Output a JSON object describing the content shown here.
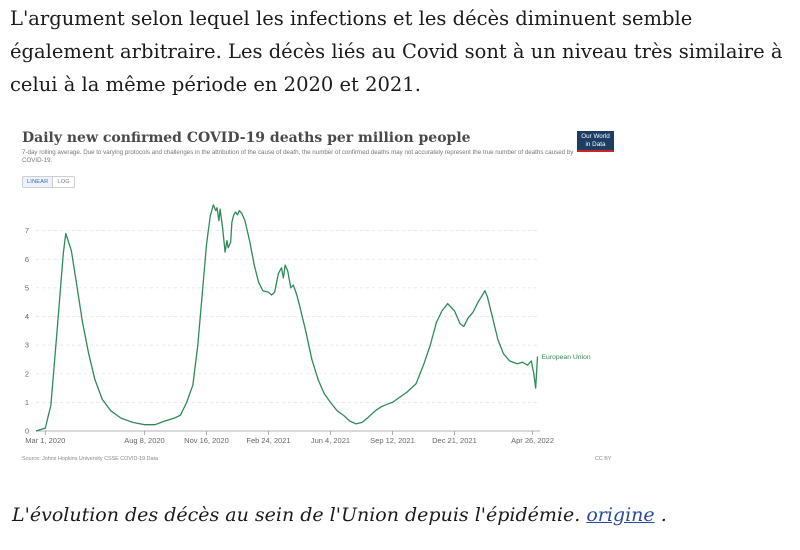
{
  "article": {
    "intro_text": "L'argument selon lequel les infections et les décès diminuent semble également arbitraire. Les décès liés au Covid sont à un niveau très similaire à celui à la même période en 2020 et 2021.",
    "caption_text": "L'évolution des décès au sein de l'Union depuis l'épidémie.",
    "caption_link": "origine",
    "caption_end": "."
  },
  "chart_card": {
    "logo_line1": "Our World",
    "logo_line2": "in Data",
    "linear_label": "LINEAR",
    "log_label": "LOG",
    "source": "Source: Johns Hopkins University CSSE COVID-19 Data",
    "license": "CC BY",
    "colors": {
      "series": "#2e8b57",
      "grid": "#e2e2e2",
      "axis_text": "#666666"
    }
  },
  "chart_data": {
    "type": "line",
    "title": "Daily new confirmed COVID-19 deaths per million people",
    "subtitle": "7-day rolling average. Due to varying protocols and challenges in the attribution of the cause of death, the number of confirmed deaths may not accurately represent the true number of deaths caused by COVID-19.",
    "xlabel": "",
    "ylabel": "",
    "ylim": [
      0,
      8
    ],
    "xlim": [
      "2020-02-15",
      "2022-05-08"
    ],
    "yticks": [
      0,
      1,
      2,
      3,
      4,
      5,
      6,
      7
    ],
    "xticks": [
      {
        "date": "2020-03-01",
        "label": "Mar 1, 2020"
      },
      {
        "date": "2020-08-08",
        "label": "Aug 8, 2020"
      },
      {
        "date": "2020-11-16",
        "label": "Nov 16, 2020"
      },
      {
        "date": "2021-02-24",
        "label": "Feb 24, 2021"
      },
      {
        "date": "2021-06-04",
        "label": "Jun 4, 2021"
      },
      {
        "date": "2021-09-12",
        "label": "Sep 12, 2021"
      },
      {
        "date": "2021-12-21",
        "label": "Dec 21, 2021"
      },
      {
        "date": "2022-04-26",
        "label": "Apr 26, 2022"
      }
    ],
    "grid": true,
    "legend": "end-label",
    "series": [
      {
        "name": "European Union",
        "points": [
          [
            "2020-02-15",
            0
          ],
          [
            "2020-03-01",
            0.1
          ],
          [
            "2020-03-10",
            0.9
          ],
          [
            "2020-03-20",
            3.5
          ],
          [
            "2020-03-30",
            6.2
          ],
          [
            "2020-04-03",
            6.9
          ],
          [
            "2020-04-06",
            6.7
          ],
          [
            "2020-04-12",
            6.3
          ],
          [
            "2020-04-20",
            5.2
          ],
          [
            "2020-04-30",
            3.8
          ],
          [
            "2020-05-10",
            2.7
          ],
          [
            "2020-05-20",
            1.8
          ],
          [
            "2020-06-01",
            1.1
          ],
          [
            "2020-06-15",
            0.7
          ],
          [
            "2020-07-01",
            0.45
          ],
          [
            "2020-07-20",
            0.3
          ],
          [
            "2020-08-08",
            0.22
          ],
          [
            "2020-08-25",
            0.22
          ],
          [
            "2020-09-10",
            0.35
          ],
          [
            "2020-09-25",
            0.45
          ],
          [
            "2020-10-05",
            0.55
          ],
          [
            "2020-10-15",
            1.0
          ],
          [
            "2020-10-25",
            1.6
          ],
          [
            "2020-11-02",
            3.0
          ],
          [
            "2020-11-10",
            5.0
          ],
          [
            "2020-11-16",
            6.5
          ],
          [
            "2020-11-22",
            7.5
          ],
          [
            "2020-11-27",
            7.9
          ],
          [
            "2020-12-01",
            7.7
          ],
          [
            "2020-12-03",
            7.8
          ],
          [
            "2020-12-06",
            7.35
          ],
          [
            "2020-12-08",
            7.75
          ],
          [
            "2020-12-12",
            7.1
          ],
          [
            "2020-12-16",
            6.25
          ],
          [
            "2020-12-19",
            6.65
          ],
          [
            "2020-12-21",
            6.4
          ],
          [
            "2020-12-25",
            6.6
          ],
          [
            "2020-12-27",
            7.3
          ],
          [
            "2020-12-30",
            7.55
          ],
          [
            "2021-01-02",
            7.65
          ],
          [
            "2021-01-05",
            7.55
          ],
          [
            "2021-01-08",
            7.7
          ],
          [
            "2021-01-12",
            7.6
          ],
          [
            "2021-01-17",
            7.35
          ],
          [
            "2021-01-25",
            6.6
          ],
          [
            "2021-02-01",
            5.8
          ],
          [
            "2021-02-08",
            5.2
          ],
          [
            "2021-02-15",
            4.9
          ],
          [
            "2021-02-24",
            4.85
          ],
          [
            "2021-03-01",
            4.75
          ],
          [
            "2021-03-06",
            4.85
          ],
          [
            "2021-03-12",
            5.5
          ],
          [
            "2021-03-17",
            5.7
          ],
          [
            "2021-03-20",
            5.35
          ],
          [
            "2021-03-23",
            5.8
          ],
          [
            "2021-03-27",
            5.6
          ],
          [
            "2021-04-01",
            5.0
          ],
          [
            "2021-04-05",
            5.1
          ],
          [
            "2021-04-10",
            4.8
          ],
          [
            "2021-04-15",
            4.4
          ],
          [
            "2021-04-25",
            3.5
          ],
          [
            "2021-05-05",
            2.5
          ],
          [
            "2021-05-15",
            1.8
          ],
          [
            "2021-05-25",
            1.3
          ],
          [
            "2021-06-04",
            1.0
          ],
          [
            "2021-06-15",
            0.7
          ],
          [
            "2021-06-25",
            0.55
          ],
          [
            "2021-07-05",
            0.35
          ],
          [
            "2021-07-15",
            0.25
          ],
          [
            "2021-07-25",
            0.3
          ],
          [
            "2021-08-05",
            0.5
          ],
          [
            "2021-08-15",
            0.7
          ],
          [
            "2021-08-25",
            0.85
          ],
          [
            "2021-09-05",
            0.95
          ],
          [
            "2021-09-12",
            1.0
          ],
          [
            "2021-09-25",
            1.2
          ],
          [
            "2021-10-05",
            1.35
          ],
          [
            "2021-10-20",
            1.65
          ],
          [
            "2021-11-01",
            2.3
          ],
          [
            "2021-11-12",
            3.0
          ],
          [
            "2021-11-22",
            3.8
          ],
          [
            "2021-12-01",
            4.2
          ],
          [
            "2021-12-10",
            4.45
          ],
          [
            "2021-12-21",
            4.2
          ],
          [
            "2021-12-30",
            3.75
          ],
          [
            "2022-01-05",
            3.65
          ],
          [
            "2022-01-12",
            3.95
          ],
          [
            "2022-01-20",
            4.15
          ],
          [
            "2022-01-28",
            4.5
          ],
          [
            "2022-02-04",
            4.75
          ],
          [
            "2022-02-08",
            4.9
          ],
          [
            "2022-02-12",
            4.7
          ],
          [
            "2022-02-20",
            4.0
          ],
          [
            "2022-03-01",
            3.2
          ],
          [
            "2022-03-10",
            2.7
          ],
          [
            "2022-03-20",
            2.45
          ],
          [
            "2022-04-01",
            2.35
          ],
          [
            "2022-04-10",
            2.4
          ],
          [
            "2022-04-18",
            2.3
          ],
          [
            "2022-04-24",
            2.45
          ],
          [
            "2022-04-28",
            2.0
          ],
          [
            "2022-05-01",
            1.5
          ],
          [
            "2022-05-04",
            2.6
          ]
        ]
      }
    ]
  }
}
